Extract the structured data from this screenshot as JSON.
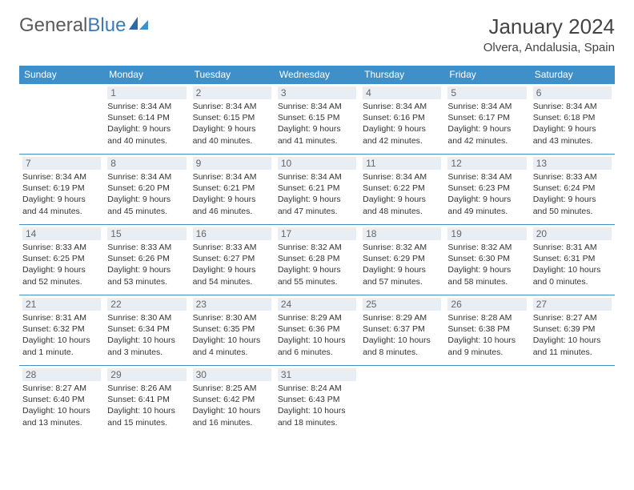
{
  "logo": {
    "text1": "General",
    "text2": "Blue"
  },
  "title": "January 2024",
  "location": "Olvera, Andalusia, Spain",
  "colors": {
    "header_bg": "#3f8fc9",
    "daynum_bg": "#e8eef3",
    "logo_gray": "#5a5a5a",
    "logo_blue": "#3b7ab5"
  },
  "weekdays": [
    "Sunday",
    "Monday",
    "Tuesday",
    "Wednesday",
    "Thursday",
    "Friday",
    "Saturday"
  ],
  "weeks": [
    [
      null,
      {
        "n": "1",
        "sr": "8:34 AM",
        "ss": "6:14 PM",
        "dl": "9 hours and 40 minutes."
      },
      {
        "n": "2",
        "sr": "8:34 AM",
        "ss": "6:15 PM",
        "dl": "9 hours and 40 minutes."
      },
      {
        "n": "3",
        "sr": "8:34 AM",
        "ss": "6:15 PM",
        "dl": "9 hours and 41 minutes."
      },
      {
        "n": "4",
        "sr": "8:34 AM",
        "ss": "6:16 PM",
        "dl": "9 hours and 42 minutes."
      },
      {
        "n": "5",
        "sr": "8:34 AM",
        "ss": "6:17 PM",
        "dl": "9 hours and 42 minutes."
      },
      {
        "n": "6",
        "sr": "8:34 AM",
        "ss": "6:18 PM",
        "dl": "9 hours and 43 minutes."
      }
    ],
    [
      {
        "n": "7",
        "sr": "8:34 AM",
        "ss": "6:19 PM",
        "dl": "9 hours and 44 minutes."
      },
      {
        "n": "8",
        "sr": "8:34 AM",
        "ss": "6:20 PM",
        "dl": "9 hours and 45 minutes."
      },
      {
        "n": "9",
        "sr": "8:34 AM",
        "ss": "6:21 PM",
        "dl": "9 hours and 46 minutes."
      },
      {
        "n": "10",
        "sr": "8:34 AM",
        "ss": "6:21 PM",
        "dl": "9 hours and 47 minutes."
      },
      {
        "n": "11",
        "sr": "8:34 AM",
        "ss": "6:22 PM",
        "dl": "9 hours and 48 minutes."
      },
      {
        "n": "12",
        "sr": "8:34 AM",
        "ss": "6:23 PM",
        "dl": "9 hours and 49 minutes."
      },
      {
        "n": "13",
        "sr": "8:33 AM",
        "ss": "6:24 PM",
        "dl": "9 hours and 50 minutes."
      }
    ],
    [
      {
        "n": "14",
        "sr": "8:33 AM",
        "ss": "6:25 PM",
        "dl": "9 hours and 52 minutes."
      },
      {
        "n": "15",
        "sr": "8:33 AM",
        "ss": "6:26 PM",
        "dl": "9 hours and 53 minutes."
      },
      {
        "n": "16",
        "sr": "8:33 AM",
        "ss": "6:27 PM",
        "dl": "9 hours and 54 minutes."
      },
      {
        "n": "17",
        "sr": "8:32 AM",
        "ss": "6:28 PM",
        "dl": "9 hours and 55 minutes."
      },
      {
        "n": "18",
        "sr": "8:32 AM",
        "ss": "6:29 PM",
        "dl": "9 hours and 57 minutes."
      },
      {
        "n": "19",
        "sr": "8:32 AM",
        "ss": "6:30 PM",
        "dl": "9 hours and 58 minutes."
      },
      {
        "n": "20",
        "sr": "8:31 AM",
        "ss": "6:31 PM",
        "dl": "10 hours and 0 minutes."
      }
    ],
    [
      {
        "n": "21",
        "sr": "8:31 AM",
        "ss": "6:32 PM",
        "dl": "10 hours and 1 minute."
      },
      {
        "n": "22",
        "sr": "8:30 AM",
        "ss": "6:34 PM",
        "dl": "10 hours and 3 minutes."
      },
      {
        "n": "23",
        "sr": "8:30 AM",
        "ss": "6:35 PM",
        "dl": "10 hours and 4 minutes."
      },
      {
        "n": "24",
        "sr": "8:29 AM",
        "ss": "6:36 PM",
        "dl": "10 hours and 6 minutes."
      },
      {
        "n": "25",
        "sr": "8:29 AM",
        "ss": "6:37 PM",
        "dl": "10 hours and 8 minutes."
      },
      {
        "n": "26",
        "sr": "8:28 AM",
        "ss": "6:38 PM",
        "dl": "10 hours and 9 minutes."
      },
      {
        "n": "27",
        "sr": "8:27 AM",
        "ss": "6:39 PM",
        "dl": "10 hours and 11 minutes."
      }
    ],
    [
      {
        "n": "28",
        "sr": "8:27 AM",
        "ss": "6:40 PM",
        "dl": "10 hours and 13 minutes."
      },
      {
        "n": "29",
        "sr": "8:26 AM",
        "ss": "6:41 PM",
        "dl": "10 hours and 15 minutes."
      },
      {
        "n": "30",
        "sr": "8:25 AM",
        "ss": "6:42 PM",
        "dl": "10 hours and 16 minutes."
      },
      {
        "n": "31",
        "sr": "8:24 AM",
        "ss": "6:43 PM",
        "dl": "10 hours and 18 minutes."
      },
      null,
      null,
      null
    ]
  ]
}
